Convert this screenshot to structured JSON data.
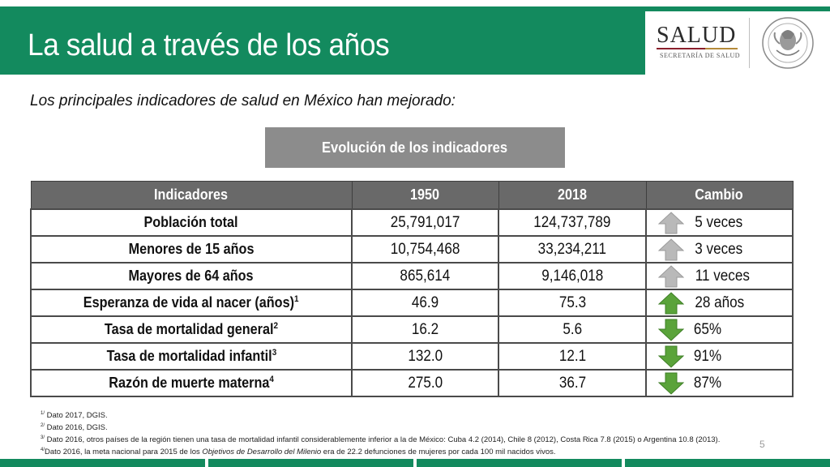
{
  "header": {
    "title": "La salud a través de los años",
    "brand_name": "SALUD",
    "brand_sub": "SECRETARÍA DE SALUD"
  },
  "subtitle": "Los principales indicadores de salud en México han mejorado:",
  "box_label": "Evolución de los indicadores",
  "table": {
    "headers": [
      "Indicadores",
      "1950",
      "2018",
      "Cambio"
    ],
    "rows": [
      {
        "label": "Población total",
        "sup": "",
        "y1950": "25,791,017",
        "y2018": "124,737,789",
        "change": "5 veces",
        "arrow": "up-gray"
      },
      {
        "label": "Menores de 15 años",
        "sup": "",
        "y1950": "10,754,468",
        "y2018": "33,234,211",
        "change": "3 veces",
        "arrow": "up-gray"
      },
      {
        "label": "Mayores de 64 años",
        "sup": "",
        "y1950": "865,614",
        "y2018": "9,146,018",
        "change": "11 veces",
        "arrow": "up-gray"
      },
      {
        "label": "Esperanza de vida al nacer (años)",
        "sup": "1",
        "y1950": "46.9",
        "y2018": "75.3",
        "change": "28 años",
        "arrow": "up-green"
      },
      {
        "label": "Tasa de mortalidad general",
        "sup": "2",
        "y1950": "16.2",
        "y2018": "5.6",
        "change": "65%",
        "arrow": "down-green"
      },
      {
        "label": "Tasa de mortalidad infantil",
        "sup": "3",
        "y1950": "132.0",
        "y2018": "12.1",
        "change": "91%",
        "arrow": "down-green"
      },
      {
        "label": "Razón de muerte materna",
        "sup": "4",
        "y1950": "275.0",
        "y2018": "36.7",
        "change": "87%",
        "arrow": "down-green"
      }
    ]
  },
  "footnotes": [
    {
      "sup": "1/",
      "text": " Dato 2017, DGIS."
    },
    {
      "sup": "2/",
      "text": " Dato 2016, DGIS."
    },
    {
      "sup": "3/",
      "text": " Dato 2016, otros países de la región tienen una tasa de mortalidad infantil considerablemente inferior a la de México: Cuba 4.2 (2014), Chile 8 (2012), Costa Rica 7.8 (2015) o Argentina 10.8 (2013)."
    },
    {
      "sup": "4/",
      "pre": "Dato 2016, la meta nacional para 2015 de los ",
      "em": "Objetivos de Desarrollo del Milenio",
      "post": " era de 22.2 defunciones de mujeres por cada 100 mil nacidos vivos."
    }
  ],
  "page_number": "5",
  "colors": {
    "brand_green": "#138a5e",
    "arrow_gray": "#b9b9b9",
    "arrow_green": "#5aa33a"
  }
}
